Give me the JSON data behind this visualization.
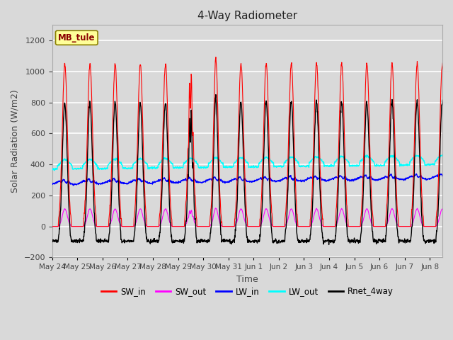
{
  "title": "4-Way Radiometer",
  "xlabel": "Time",
  "ylabel": "Solar Radiation (W/m2)",
  "station_label": "MB_tule",
  "ylim": [
    -200,
    1300
  ],
  "yticks": [
    -200,
    0,
    200,
    400,
    600,
    800,
    1000,
    1200
  ],
  "colors": {
    "SW_in": "#ff0000",
    "SW_out": "#ff00ff",
    "LW_in": "#0000ff",
    "LW_out": "#00ffff",
    "Rnet_4way": "#000000"
  },
  "line_widths": {
    "SW_in": 0.8,
    "SW_out": 0.8,
    "LW_in": 1.0,
    "LW_out": 1.0,
    "Rnet_4way": 1.0
  },
  "background_color": "#d9d9d9",
  "plot_bg_color": "#d9d9d9",
  "grid_color": "#ffffff",
  "num_days": 16,
  "SW_in_peak": 1050,
  "SW_out_peak": 110,
  "LW_in_base": 290,
  "LW_out_base": 390,
  "tick_labels": [
    "May 24",
    "May 25",
    "May 26",
    "May 27",
    "May 28",
    "May 29",
    "May 30",
    "May 31",
    "Jun 1",
    "Jun 2",
    "Jun 3",
    "Jun 4",
    "Jun 5",
    "Jun 6",
    "Jun 7",
    "Jun 8"
  ]
}
